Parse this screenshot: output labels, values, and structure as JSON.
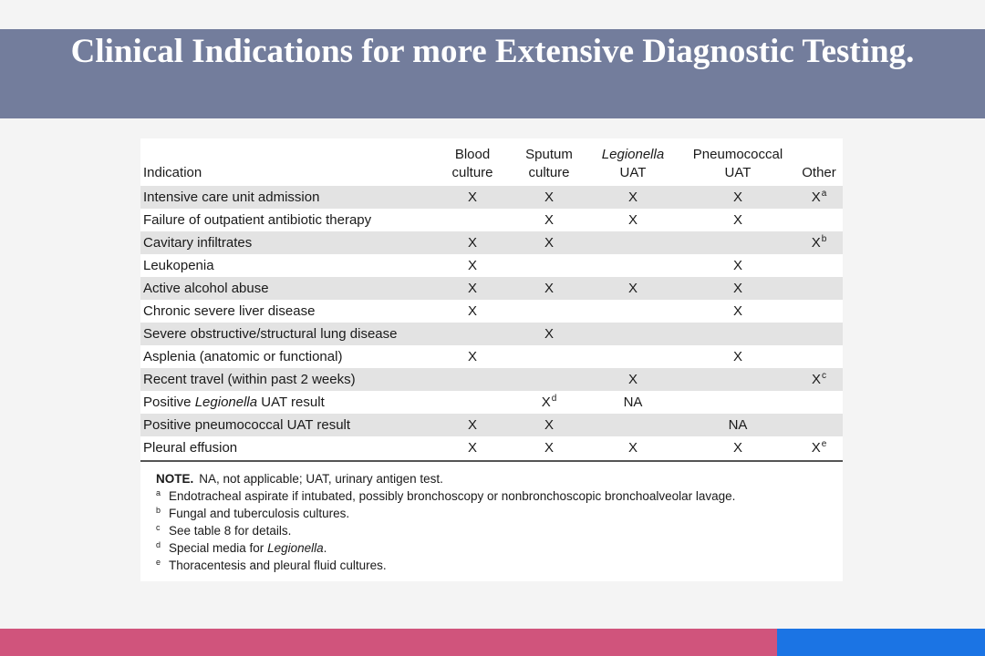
{
  "title": "Clinical Indications for more Extensive Diagnostic Testing.",
  "table": {
    "headers": [
      {
        "lines": [
          "Indication"
        ],
        "italic": false
      },
      {
        "lines": [
          "Blood",
          "culture"
        ],
        "italic": false
      },
      {
        "lines": [
          "Sputum",
          "culture"
        ],
        "italic": false
      },
      {
        "lines": [
          "Legionella",
          "UAT"
        ],
        "italic_first_line": true
      },
      {
        "lines": [
          "Pneumococcal",
          "UAT"
        ],
        "italic": false
      },
      {
        "lines": [
          "Other"
        ],
        "italic": false
      }
    ],
    "rows": [
      {
        "indication": "Intensive care unit admission",
        "blood": "X",
        "sputum": "X",
        "legionella": "X",
        "pneumo": "X",
        "other": "X",
        "other_sup": "a"
      },
      {
        "indication": "Failure of outpatient antibiotic therapy",
        "blood": "",
        "sputum": "X",
        "legionella": "X",
        "pneumo": "X",
        "other": ""
      },
      {
        "indication": "Cavitary infiltrates",
        "blood": "X",
        "sputum": "X",
        "legionella": "",
        "pneumo": "",
        "other": "X",
        "other_sup": "b"
      },
      {
        "indication": "Leukopenia",
        "blood": "X",
        "sputum": "",
        "legionella": "",
        "pneumo": "X",
        "other": ""
      },
      {
        "indication": "Active alcohol abuse",
        "blood": "X",
        "sputum": "X",
        "legionella": "X",
        "pneumo": "X",
        "other": ""
      },
      {
        "indication": "Chronic severe liver disease",
        "blood": "X",
        "sputum": "",
        "legionella": "",
        "pneumo": "X",
        "other": ""
      },
      {
        "indication": "Severe obstructive/structural lung disease",
        "blood": "",
        "sputum": "X",
        "legionella": "",
        "pneumo": "",
        "other": ""
      },
      {
        "indication": "Asplenia (anatomic or functional)",
        "blood": "X",
        "sputum": "",
        "legionella": "",
        "pneumo": "X",
        "other": ""
      },
      {
        "indication": "Recent travel (within past 2 weeks)",
        "blood": "",
        "sputum": "",
        "legionella": "X",
        "pneumo": "",
        "other": "X",
        "other_sup": "c"
      },
      {
        "indication_prefix": "Positive ",
        "indication_italic": "Legionella",
        "indication_suffix": " UAT result",
        "blood": "",
        "sputum": "X",
        "sputum_sup": "d",
        "legionella": "NA",
        "pneumo": "",
        "other": ""
      },
      {
        "indication": "Positive pneumococcal UAT result",
        "blood": "X",
        "sputum": "X",
        "legionella": "",
        "pneumo": "NA",
        "other": ""
      },
      {
        "indication": "Pleural effusion",
        "blood": "X",
        "sputum": "X",
        "legionella": "X",
        "pneumo": "X",
        "other": "X",
        "other_sup": "e"
      }
    ]
  },
  "notes": {
    "note_label": "NOTE.",
    "note_text": "NA, not applicable; UAT, urinary antigen test.",
    "footnotes": [
      {
        "key": "a",
        "text": "Endotracheal aspirate if intubated, possibly bronchoscopy or nonbronchoscopic bronchoalveolar lavage."
      },
      {
        "key": "b",
        "text": "Fungal and tuberculosis cultures."
      },
      {
        "key": "c",
        "text": "See table 8 for details."
      },
      {
        "key": "d",
        "text_prefix": "Special media for ",
        "text_italic": "Legionella",
        "text_suffix": "."
      },
      {
        "key": "e",
        "text": "Thoracentesis and pleural fluid cultures."
      }
    ]
  },
  "colors": {
    "title_bar": "#737d9c",
    "row_stripe": "#e3e3e3",
    "bottom_pink": "#d0547c",
    "bottom_blue": "#1b74e4"
  }
}
